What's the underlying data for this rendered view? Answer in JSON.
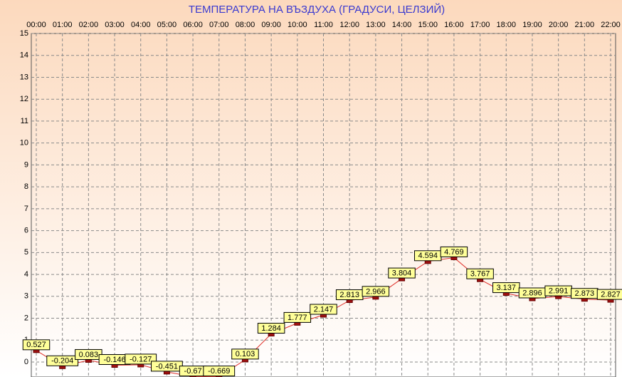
{
  "chart_data": {
    "type": "line",
    "title": "ТЕМПЕРАТУРА НА ВЪЗДУХА  (ГРАДУСИ, ЦЕЛЗИЙ)",
    "categories": [
      "00:00",
      "01:00",
      "02:00",
      "03:00",
      "04:00",
      "05:00",
      "06:00",
      "07:00",
      "08:00",
      "09:00",
      "10:00",
      "11:00",
      "12:00",
      "13:00",
      "14:00",
      "15:00",
      "16:00",
      "17:00",
      "18:00",
      "19:00",
      "20:00",
      "21:00",
      "22:00"
    ],
    "values": [
      0.527,
      -0.204,
      0.083,
      -0.146,
      -0.127,
      -0.451,
      -0.67,
      -0.669,
      0.103,
      1.284,
      1.777,
      2.147,
      2.813,
      2.966,
      3.804,
      4.594,
      4.769,
      3.767,
      3.137,
      2.896,
      2.991,
      2.873,
      2.827
    ],
    "color": "#e0302a",
    "ylim": [
      0,
      15
    ],
    "yticks": [
      0,
      1,
      2,
      3,
      4,
      5,
      6,
      7,
      8,
      9,
      10,
      11,
      12,
      13,
      14,
      15
    ],
    "grid": true
  }
}
